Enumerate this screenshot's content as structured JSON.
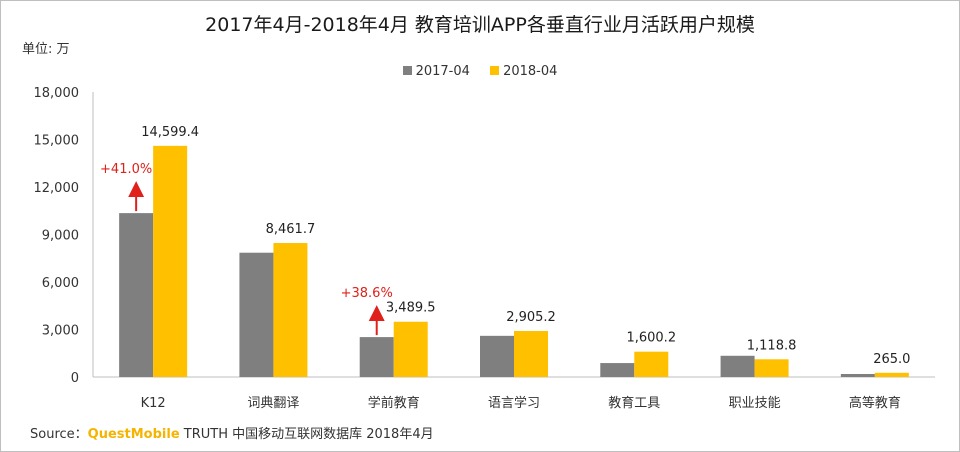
{
  "header": {
    "title": "2017年4月-2018年4月 教育培训APP各垂直行业月活跃用户规模",
    "unit": "单位: 万"
  },
  "legend": [
    {
      "label": "2017-04",
      "color": "#7f7f7f"
    },
    {
      "label": "2018-04",
      "color": "#ffc000"
    }
  ],
  "footer": {
    "source_prefix": "Source：",
    "brand": "QuestMobile",
    "source_rest": " TRUTH 中国移动互联网数据库 2018年4月"
  },
  "chart_data": {
    "type": "bar",
    "title": "2017年4月-2018年4月 教育培训APP各垂直行业月活跃用户规模",
    "ylabel": "单位: 万",
    "xlabel": "",
    "ylim": [
      0,
      18000
    ],
    "yticks": [
      "0",
      "3,000",
      "6,000",
      "9,000",
      "12,000",
      "15,000",
      "18,000"
    ],
    "ytick_values": [
      0,
      3000,
      6000,
      9000,
      12000,
      15000,
      18000
    ],
    "grid": false,
    "legend_position": "top",
    "categories": [
      "K12",
      "词典翻译",
      "学前教育",
      "语言学习",
      "教育工具",
      "职业技能",
      "高等教育"
    ],
    "series": [
      {
        "name": "2017-04",
        "color": "#7f7f7f",
        "values": [
          10350,
          7850,
          2520,
          2600,
          880,
          1340,
          190
        ]
      },
      {
        "name": "2018-04",
        "color": "#ffc000",
        "values": [
          14599.4,
          8461.7,
          3489.5,
          2905.2,
          1600.2,
          1118.8,
          265.0
        ]
      }
    ],
    "data_labels": [
      "14,599.4",
      "8,461.7",
      "3,489.5",
      "2,905.2",
      "1,600.2",
      "1,118.8",
      "265.0"
    ],
    "annotations": [
      {
        "category": "K12",
        "text": "+41.0%",
        "color": "#e0201b"
      },
      {
        "category": "学前教育",
        "text": "+38.6%",
        "color": "#e0201b"
      }
    ]
  }
}
